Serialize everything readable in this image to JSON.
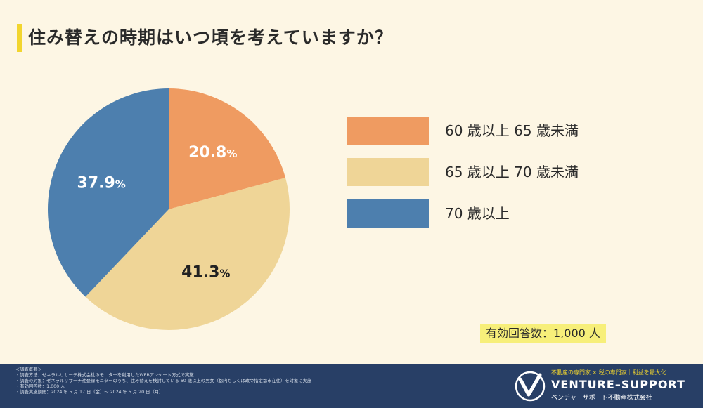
{
  "title": "住み替えの時期はいつ頃を考えていますか？",
  "chart_data": {
    "type": "pie",
    "title": "住み替えの時期はいつ頃を考えていますか？",
    "slices": [
      {
        "label": "60 歳以上 65 歳未満",
        "value": 20.8,
        "display": "20.8",
        "color": "#ef9b61",
        "text_color": "#ffffff"
      },
      {
        "label": "65 歳以上 70 歳未満",
        "value": 41.3,
        "display": "41.3",
        "color": "#efd597",
        "text_color": "#222222"
      },
      {
        "label": "70 歳以上",
        "value": 37.9,
        "display": "37.9",
        "color": "#4d7fae",
        "text_color": "#ffffff"
      }
    ],
    "unit": "%",
    "start": "12 o'clock, clockwise",
    "legend_position": "right"
  },
  "respondents": "有効回答数：1,000 人",
  "notes": [
    "＜調査概要＞",
    "・調査方法：ゼネラルリサーチ株式会社のモニターを利用したWEBアンケート方式で実施",
    "・調査の対象：ゼネラルリサーチ社登録モニターのうち、住み替えを検討している 60 歳以上の男女（都内もしくは政令指定都市在住）を対象に実施",
    "・有効回答数：1,000 人",
    "・調査実施期間：2024 年 5 月 17 日（金）～ 2024 年 5 月 20 日（月）"
  ],
  "brand": {
    "tagline": "不動産の専門家 × 税の専門家｜利益を最大化",
    "name": "VENTURE–SUPPORT",
    "sub": "ベンチャーサポート不動産株式会社"
  },
  "colors": {
    "background": "#fdf6e4",
    "accent": "#f2d52e",
    "footer": "#283f66"
  }
}
